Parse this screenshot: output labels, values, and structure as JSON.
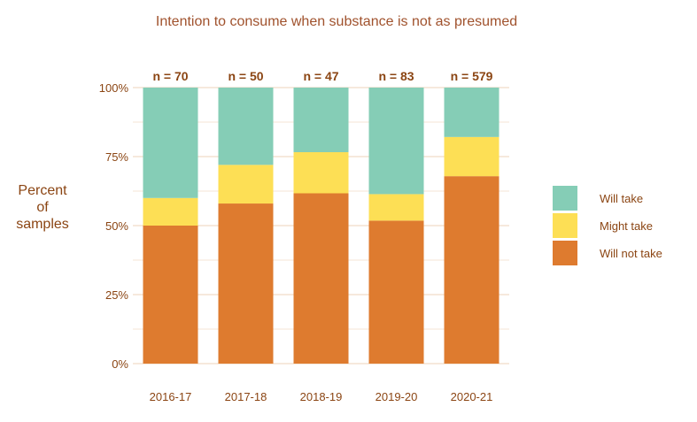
{
  "chart_data": {
    "type": "bar",
    "stacked": true,
    "title": "Intention to consume when substance is not as presumed",
    "xlabel": "",
    "ylabel": "Percent of samples",
    "ylabel_lines": [
      "Percent",
      "of",
      "samples"
    ],
    "ylim": [
      0,
      100
    ],
    "yticks": [
      "0%",
      "25%",
      "50%",
      "75%",
      "100%"
    ],
    "categories": [
      "2016-17",
      "2017-18",
      "2018-19",
      "2019-20",
      "2020-21"
    ],
    "annotations": [
      "n = 70",
      "n = 50",
      "n = 47",
      "n = 83",
      "n = 579"
    ],
    "series": [
      {
        "name": "Will not take",
        "color": "#de7b2f",
        "values": [
          50.0,
          58.0,
          61.7,
          51.8,
          67.9
        ]
      },
      {
        "name": "Might take",
        "color": "#fddf55",
        "values": [
          10.0,
          14.0,
          14.9,
          9.6,
          14.2
        ]
      },
      {
        "name": "Will take",
        "color": "#85cdb6",
        "values": [
          40.0,
          28.0,
          23.4,
          38.6,
          17.9
        ]
      }
    ],
    "legend_order": [
      "Will take",
      "Might take",
      "Will not take"
    ],
    "legend_position": "right",
    "grid": true,
    "text_color": "#8b4513"
  }
}
